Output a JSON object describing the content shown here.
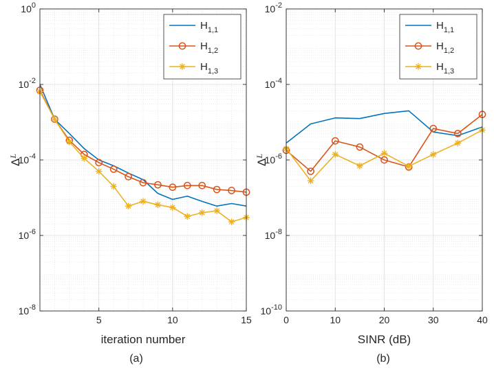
{
  "chart_data": [
    {
      "type": "line",
      "panel": "(a)",
      "xlabel": "iteration number",
      "ylabel": "ΔL",
      "yscale": "log",
      "xlim": [
        1,
        15
      ],
      "ylim_exp": [
        -8,
        0
      ],
      "xticks": [
        5,
        10,
        15
      ],
      "yticks_exp": [
        0,
        -2,
        -4,
        -6,
        -8
      ],
      "legend_position": "top-right",
      "x": [
        1,
        2,
        3,
        4,
        5,
        6,
        7,
        8,
        9,
        10,
        11,
        12,
        13,
        14,
        15
      ],
      "series": [
        {
          "name": "H1,1",
          "label_base": "H",
          "label_sub": "1,1",
          "color": "#0072BD",
          "marker": "none",
          "values": [
            0.01,
            0.0012,
            0.0005,
            0.0002,
            0.0001,
            7e-05,
            4.5e-05,
            3e-05,
            1.3e-05,
            9e-06,
            1.1e-05,
            8e-06,
            6e-06,
            7e-06,
            6e-06
          ]
        },
        {
          "name": "H1,2",
          "label_base": "H",
          "label_sub": "1,2",
          "color": "#D95319",
          "marker": "circle",
          "values": [
            0.007,
            0.0012,
            0.00033,
            0.00014,
            8.5e-05,
            5.7e-05,
            3.6e-05,
            2.5e-05,
            2.2e-05,
            1.9e-05,
            2.1e-05,
            2.1e-05,
            1.65e-05,
            1.55e-05,
            1.4e-05
          ]
        },
        {
          "name": "H1,3",
          "label_base": "H",
          "label_sub": "1,3",
          "color": "#EDB120",
          "marker": "asterisk",
          "values": [
            0.0065,
            0.0012,
            0.0003,
            0.00011,
            5e-05,
            2e-05,
            6e-06,
            8e-06,
            6.5e-06,
            5.5e-06,
            3.2e-06,
            4e-06,
            4.5e-06,
            2.3e-06,
            3e-06
          ]
        }
      ]
    },
    {
      "type": "line",
      "panel": "(b)",
      "xlabel": "SINR  (dB)",
      "ylabel": "ΔL",
      "yscale": "log",
      "xlim": [
        0,
        40
      ],
      "ylim_exp": [
        -10,
        -2
      ],
      "xticks": [
        0,
        10,
        20,
        30,
        40
      ],
      "yticks_exp": [
        -2,
        -4,
        -6,
        -8,
        -10
      ],
      "legend_position": "top-right",
      "x": [
        0,
        5,
        10,
        15,
        20,
        25,
        30,
        35,
        40
      ],
      "series": [
        {
          "name": "H1,1",
          "label_base": "H",
          "label_sub": "1,1",
          "color": "#0072BD",
          "marker": "none",
          "values": [
            2.8e-06,
            9e-06,
            1.3e-05,
            1.25e-05,
            1.7e-05,
            2e-05,
            5.5e-06,
            4.4e-06,
            7.5e-06
          ]
        },
        {
          "name": "H1,2",
          "label_base": "H",
          "label_sub": "1,2",
          "color": "#D95319",
          "marker": "circle",
          "values": [
            1.8e-06,
            5e-07,
            3.2e-06,
            2.2e-06,
            1e-06,
            6.5e-07,
            6.8e-06,
            5e-06,
            1.6e-05
          ]
        },
        {
          "name": "H1,3",
          "label_base": "H",
          "label_sub": "1,3",
          "color": "#EDB120",
          "marker": "asterisk",
          "values": [
            2e-06,
            2.8e-07,
            1.4e-06,
            7e-07,
            1.5e-06,
            6.8e-07,
            1.4e-06,
            2.8e-06,
            6.2e-06
          ]
        }
      ]
    }
  ],
  "captions": {
    "a": "(a)",
    "b": "(b)"
  }
}
